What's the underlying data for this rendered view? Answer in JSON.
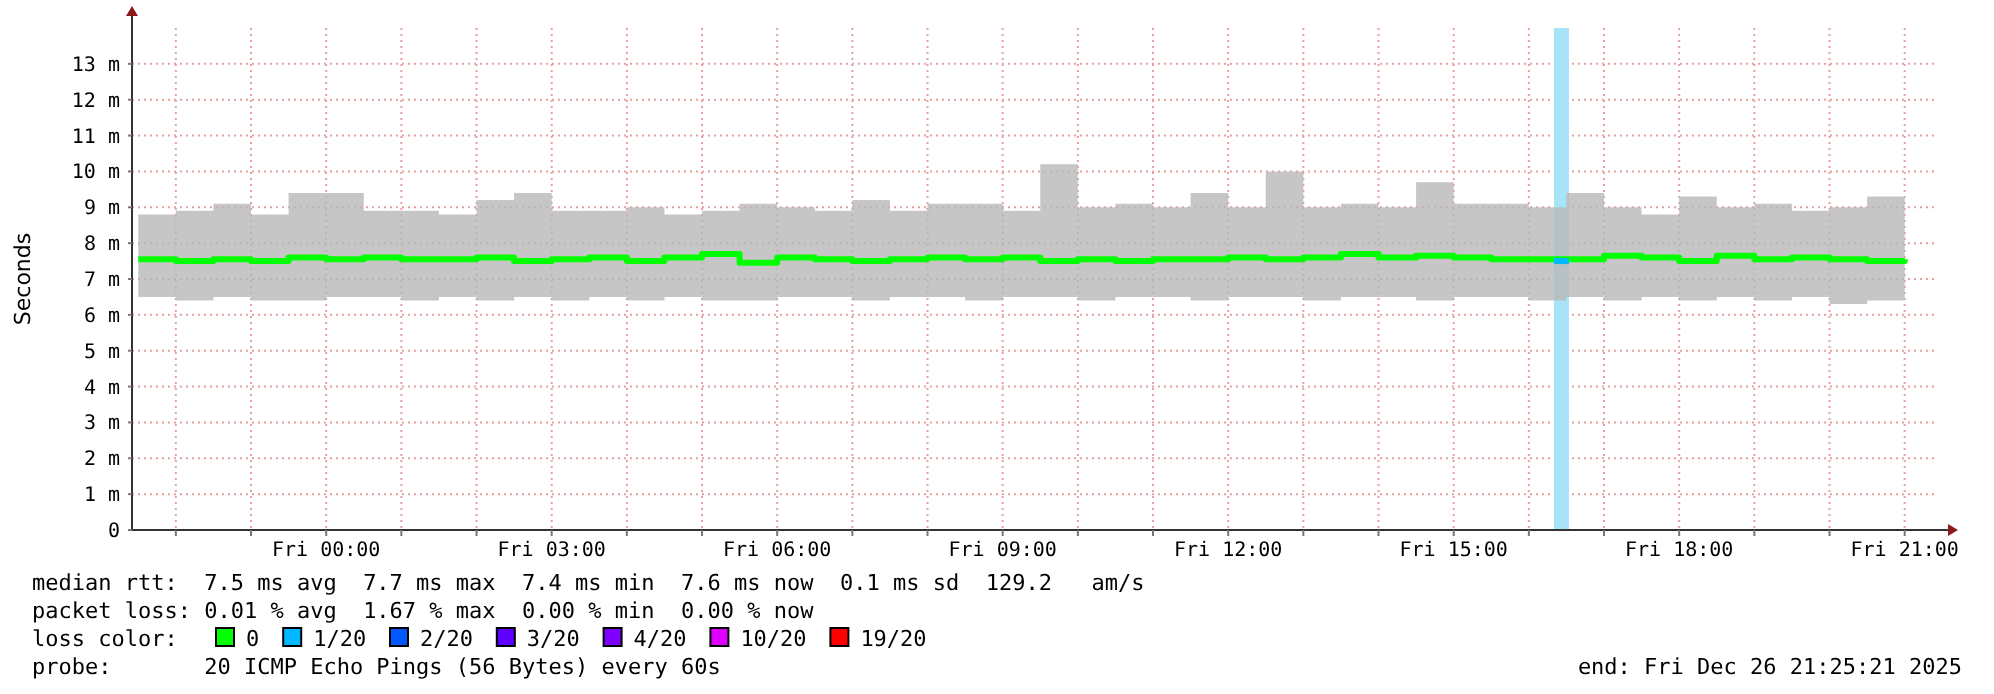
{
  "chart_data": {
    "type": "step",
    "ylabel": "Seconds",
    "xlim": [
      "2025-12-25T21:25",
      "2025-12-26T21:25"
    ],
    "xticks": [
      {
        "value": "2025-12-25T22:00",
        "label": null
      },
      {
        "value": "2025-12-25T23:00",
        "label": null
      },
      {
        "value": "2025-12-26T00:00",
        "label": "Fri 00:00"
      },
      {
        "value": "2025-12-26T01:00",
        "label": null
      },
      {
        "value": "2025-12-26T02:00",
        "label": null
      },
      {
        "value": "2025-12-26T03:00",
        "label": "Fri 03:00"
      },
      {
        "value": "2025-12-26T04:00",
        "label": null
      },
      {
        "value": "2025-12-26T05:00",
        "label": null
      },
      {
        "value": "2025-12-26T06:00",
        "label": "Fri 06:00"
      },
      {
        "value": "2025-12-26T07:00",
        "label": null
      },
      {
        "value": "2025-12-26T08:00",
        "label": null
      },
      {
        "value": "2025-12-26T09:00",
        "label": "Fri 09:00"
      },
      {
        "value": "2025-12-26T10:00",
        "label": null
      },
      {
        "value": "2025-12-26T11:00",
        "label": null
      },
      {
        "value": "2025-12-26T12:00",
        "label": "Fri 12:00"
      },
      {
        "value": "2025-12-26T13:00",
        "label": null
      },
      {
        "value": "2025-12-26T14:00",
        "label": null
      },
      {
        "value": "2025-12-26T15:00",
        "label": "Fri 15:00"
      },
      {
        "value": "2025-12-26T16:00",
        "label": null
      },
      {
        "value": "2025-12-26T17:00",
        "label": null
      },
      {
        "value": "2025-12-26T18:00",
        "label": "Fri 18:00"
      },
      {
        "value": "2025-12-26T19:00",
        "label": null
      },
      {
        "value": "2025-12-26T20:00",
        "label": null
      },
      {
        "value": "2025-12-26T21:00",
        "label": "Fri 21:00"
      }
    ],
    "ylim": [
      0,
      14
    ],
    "yticks": [
      0,
      {
        "value": 1,
        "label": "1 m"
      },
      {
        "value": 2,
        "label": "2 m"
      },
      {
        "value": 3,
        "label": "3 m"
      },
      {
        "value": 4,
        "label": "4 m"
      },
      {
        "value": 5,
        "label": "5 m"
      },
      {
        "value": 6,
        "label": "6 m"
      },
      {
        "value": 7,
        "label": "7 m"
      },
      {
        "value": 8,
        "label": "8 m"
      },
      {
        "value": 9,
        "label": "9 m"
      },
      {
        "value": 10,
        "label": "10 m"
      },
      {
        "value": 11,
        "label": "11 m"
      },
      {
        "value": 12,
        "label": "12 m"
      },
      {
        "value": 13,
        "label": "13 m"
      }
    ],
    "x": [
      "2025-12-25T21:30",
      "2025-12-25T22:00",
      "2025-12-25T22:30",
      "2025-12-25T23:00",
      "2025-12-25T23:30",
      "2025-12-26T00:00",
      "2025-12-26T00:30",
      "2025-12-26T01:00",
      "2025-12-26T01:30",
      "2025-12-26T02:00",
      "2025-12-26T02:30",
      "2025-12-26T03:00",
      "2025-12-26T03:30",
      "2025-12-26T04:00",
      "2025-12-26T04:30",
      "2025-12-26T05:00",
      "2025-12-26T05:30",
      "2025-12-26T06:00",
      "2025-12-26T06:30",
      "2025-12-26T07:00",
      "2025-12-26T07:30",
      "2025-12-26T08:00",
      "2025-12-26T08:30",
      "2025-12-26T09:00",
      "2025-12-26T09:30",
      "2025-12-26T10:00",
      "2025-12-26T10:30",
      "2025-12-26T11:00",
      "2025-12-26T11:30",
      "2025-12-26T12:00",
      "2025-12-26T12:30",
      "2025-12-26T13:00",
      "2025-12-26T13:30",
      "2025-12-26T14:00",
      "2025-12-26T14:30",
      "2025-12-26T15:00",
      "2025-12-26T15:30",
      "2025-12-26T16:00",
      "2025-12-26T16:30",
      "2025-12-26T17:00",
      "2025-12-26T17:30",
      "2025-12-26T18:00",
      "2025-12-26T18:30",
      "2025-12-26T19:00",
      "2025-12-26T19:30",
      "2025-12-26T20:00",
      "2025-12-26T20:30",
      "2025-12-26T21:00"
    ],
    "grid": true,
    "legend": "bottom",
    "legend_title": "loss color:",
    "series": [
      {
        "name": "0",
        "color": "#00ff00",
        "values": [
          7.55,
          7.5,
          7.55,
          7.5,
          7.6,
          7.55,
          7.6,
          7.55,
          7.55,
          7.6,
          7.5,
          7.55,
          7.6,
          7.5,
          7.6,
          7.7,
          7.45,
          7.6,
          7.55,
          7.5,
          7.55,
          7.6,
          7.55,
          7.6,
          7.5,
          7.55,
          7.5,
          7.55,
          7.55,
          7.6,
          7.55,
          7.6,
          7.7,
          7.6,
          7.65,
          7.6,
          7.55,
          7.55,
          7.55,
          7.65,
          7.6,
          7.5,
          7.65,
          7.55,
          7.6,
          7.55,
          7.5,
          7.55
        ],
        "lower": [
          6.5,
          6.4,
          6.5,
          6.4,
          6.4,
          6.5,
          6.5,
          6.4,
          6.5,
          6.4,
          6.5,
          6.4,
          6.5,
          6.4,
          6.5,
          6.4,
          6.4,
          6.5,
          6.5,
          6.4,
          6.5,
          6.5,
          6.4,
          6.5,
          6.5,
          6.4,
          6.5,
          6.5,
          6.4,
          6.5,
          6.5,
          6.4,
          6.5,
          6.5,
          6.4,
          6.5,
          6.5,
          6.4,
          6.5,
          6.4,
          6.5,
          6.4,
          6.5,
          6.4,
          6.5,
          6.3,
          6.4,
          6.4
        ],
        "upper": [
          8.8,
          8.9,
          9.1,
          8.8,
          9.4,
          9.4,
          8.9,
          8.9,
          8.8,
          9.2,
          9.4,
          8.9,
          8.9,
          9.0,
          8.8,
          8.9,
          9.1,
          9.0,
          8.9,
          9.2,
          8.9,
          9.1,
          9.1,
          8.9,
          10.2,
          9.0,
          9.1,
          9.0,
          9.4,
          9.0,
          10.0,
          9.0,
          9.1,
          9.0,
          9.7,
          9.1,
          9.1,
          9.0,
          9.4,
          9.0,
          8.8,
          9.3,
          9.0,
          9.1,
          8.9,
          9.0,
          9.3,
          9.5
        ]
      },
      {
        "name": "1/20",
        "color": "#00b8ff",
        "x": [
          "2025-12-26T16:20",
          "2025-12-26T16:32"
        ],
        "values": [
          7.5,
          7.5
        ]
      }
    ],
    "bands": [
      {
        "axis": "x",
        "from": "2025-12-26T16:20",
        "to": "2025-12-26T16:32",
        "color": "#a8e4f8"
      }
    ],
    "annotations": [
      "median rtt:  7.5 ms avg  7.7 ms max  7.4 ms min  7.6 ms now  0.1 ms sd  129.2   am/s",
      "packet loss: 0.01 % avg  1.67 % max  0.00 % min  0.00 % now",
      "probe:       20 ICMP Echo Pings (56 Bytes) every 60s",
      "end: Fri Dec 26 21:25:21 2025",
      "2/20",
      "3/20",
      "4/20",
      "10/20",
      "19/20"
    ]
  }
}
